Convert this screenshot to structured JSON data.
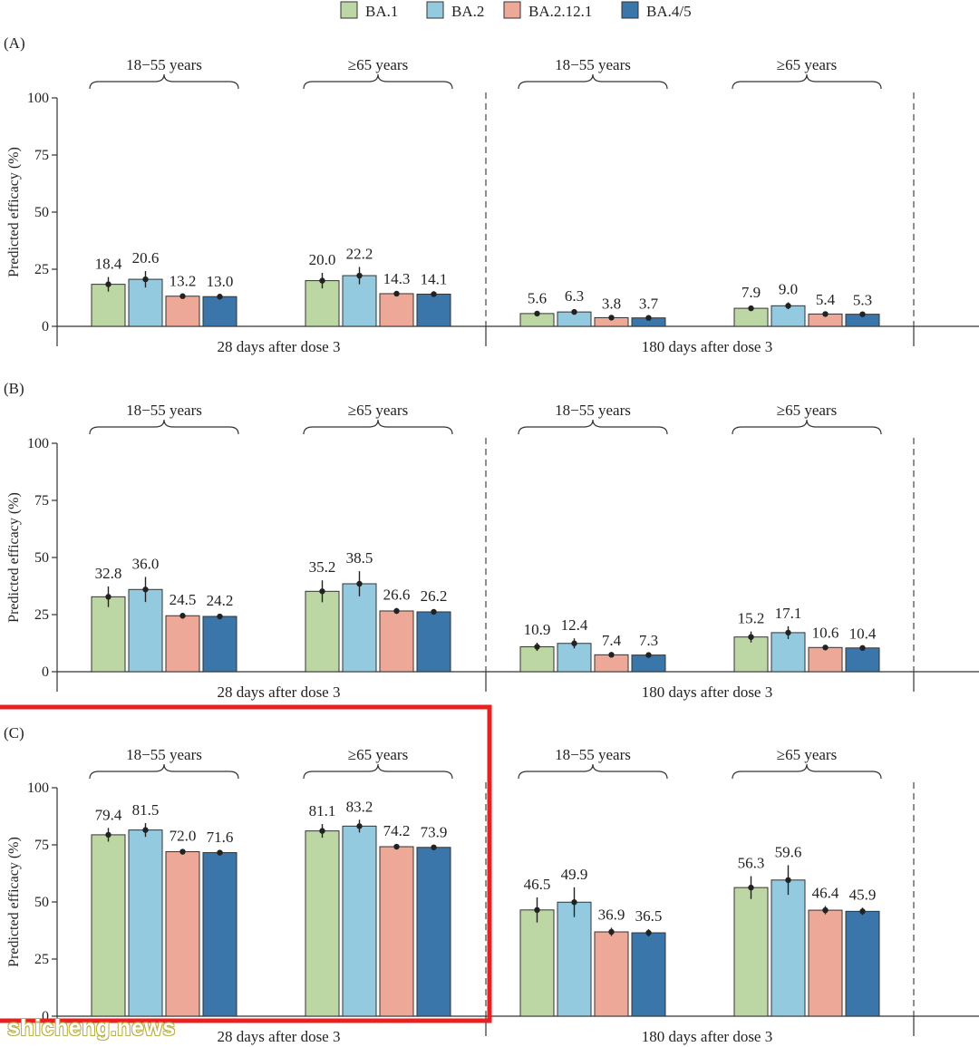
{
  "legend": [
    {
      "name": "BA.1",
      "color": "#bdd7a4"
    },
    {
      "name": "BA.2",
      "color": "#94cae0"
    },
    {
      "name": "BA.2.12.1",
      "color": "#eea897"
    },
    {
      "name": "BA.4/5",
      "color": "#3a76aa"
    }
  ],
  "watermark": "shicheng.news",
  "highlight_color": "#e82020",
  "chart_data": [
    {
      "panel": "(A)",
      "type": "bar",
      "ylabel": "Predicted efficacy (%)",
      "ylim": [
        0,
        100
      ],
      "yticks": [
        0,
        25,
        50,
        75,
        100
      ],
      "series_names": [
        "BA.1",
        "BA.2",
        "BA.2.12.1",
        "BA.4/5"
      ],
      "timepoints": [
        {
          "label": "28 days after dose 3",
          "groups": [
            {
              "label": "18−55 years",
              "values": [
                18.4,
                20.6,
                13.2,
                13.0
              ],
              "labels": [
                "18.4",
                "20.6",
                "13.2",
                "13.0"
              ],
              "errors": [
                3.2,
                3.6,
                0.8,
                0.8
              ]
            },
            {
              "label": "≥65 years",
              "values": [
                20.0,
                22.2,
                14.3,
                14.1
              ],
              "labels": [
                "20.0",
                "22.2",
                "14.3",
                "14.1"
              ],
              "errors": [
                3.4,
                3.8,
                0.8,
                0.8
              ]
            }
          ]
        },
        {
          "label": "180 days after dose 3",
          "groups": [
            {
              "label": "18−55 years",
              "values": [
                5.6,
                6.3,
                3.8,
                3.7
              ],
              "labels": [
                "5.6",
                "6.3",
                "3.8",
                "3.7"
              ],
              "errors": [
                1.0,
                1.2,
                0.4,
                0.4
              ]
            },
            {
              "label": "≥65 years",
              "values": [
                7.9,
                9.0,
                5.4,
                5.3
              ],
              "labels": [
                "7.9",
                "9.0",
                "5.4",
                "5.3"
              ],
              "errors": [
                1.2,
                1.5,
                0.5,
                0.5
              ]
            }
          ]
        }
      ]
    },
    {
      "panel": "(B)",
      "type": "bar",
      "ylabel": "Predicted efficacy (%)",
      "ylim": [
        0,
        100
      ],
      "yticks": [
        0,
        25,
        50,
        75,
        100
      ],
      "series_names": [
        "BA.1",
        "BA.2",
        "BA.2.12.1",
        "BA.4/5"
      ],
      "timepoints": [
        {
          "label": "28 days after dose 3",
          "groups": [
            {
              "label": "18−55 years",
              "values": [
                32.8,
                36.0,
                24.5,
                24.2
              ],
              "labels": [
                "32.8",
                "36.0",
                "24.5",
                "24.2"
              ],
              "errors": [
                4.5,
                5.5,
                1.3,
                1.2
              ]
            },
            {
              "label": "≥65 years",
              "values": [
                35.2,
                38.5,
                26.6,
                26.2
              ],
              "labels": [
                "35.2",
                "38.5",
                "26.6",
                "26.2"
              ],
              "errors": [
                4.8,
                5.5,
                1.3,
                1.2
              ]
            }
          ]
        },
        {
          "label": "180 days after dose 3",
          "groups": [
            {
              "label": "18−55 years",
              "values": [
                10.9,
                12.4,
                7.4,
                7.3
              ],
              "labels": [
                "10.9",
                "12.4",
                "7.4",
                "7.3"
              ],
              "errors": [
                1.8,
                2.2,
                0.6,
                0.6
              ]
            },
            {
              "label": "≥65 years",
              "values": [
                15.2,
                17.1,
                10.6,
                10.4
              ],
              "labels": [
                "15.2",
                "17.1",
                "10.6",
                "10.4"
              ],
              "errors": [
                2.4,
                2.8,
                0.7,
                0.6
              ]
            }
          ]
        }
      ]
    },
    {
      "panel": "(C)",
      "type": "bar",
      "ylabel": "Predicted efficacy (%)",
      "ylim": [
        0,
        100
      ],
      "yticks": [
        0,
        25,
        50,
        75,
        100
      ],
      "series_names": [
        "BA.1",
        "BA.2",
        "BA.2.12.1",
        "BA.4/5"
      ],
      "timepoints": [
        {
          "label": "28 days after dose 3",
          "groups": [
            {
              "label": "18−55 years",
              "values": [
                79.4,
                81.5,
                72.0,
                71.6
              ],
              "labels": [
                "79.4",
                "81.5",
                "72.0",
                "71.6"
              ],
              "errors": [
                3.0,
                3.0,
                1.2,
                1.0
              ]
            },
            {
              "label": "≥65 years",
              "values": [
                81.1,
                83.2,
                74.2,
                73.9
              ],
              "labels": [
                "81.1",
                "83.2",
                "74.2",
                "73.9"
              ],
              "errors": [
                3.0,
                2.8,
                1.2,
                1.0
              ]
            }
          ]
        },
        {
          "label": "180 days after dose 3",
          "groups": [
            {
              "label": "18−55 years",
              "values": [
                46.5,
                49.9,
                36.9,
                36.5
              ],
              "labels": [
                "46.5",
                "49.9",
                "36.9",
                "36.5"
              ],
              "errors": [
                5.5,
                6.5,
                1.8,
                1.6
              ]
            },
            {
              "label": "≥65 years",
              "values": [
                56.3,
                59.6,
                46.4,
                45.9
              ],
              "labels": [
                "56.3",
                "59.6",
                "46.4",
                "45.9"
              ],
              "errors": [
                5.0,
                6.5,
                1.8,
                1.6
              ]
            }
          ]
        }
      ]
    }
  ]
}
